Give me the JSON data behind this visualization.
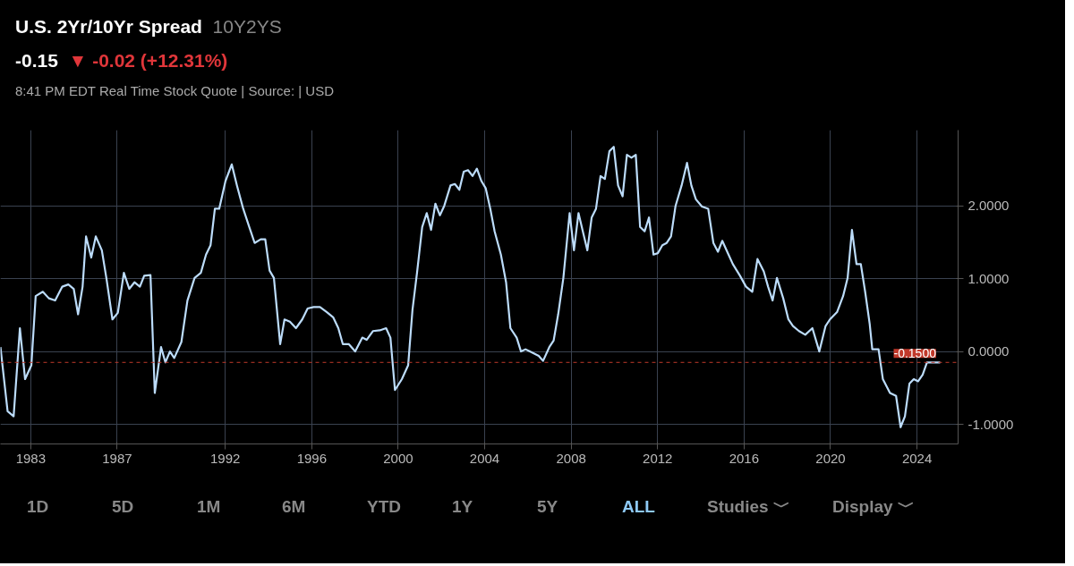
{
  "chart_data": {
    "type": "line",
    "title": "U.S. 2Yr/10Yr Spread",
    "subtitle": "10Y2YS",
    "annotations": [
      "-0.15",
      "▼ -0.02 (+12.31%)",
      "8:41 PM EDT Real Time Stock Quote | Source: | USD",
      "1D",
      "5D",
      "1M",
      "6M",
      "YTD",
      "1Y",
      "5Y",
      "ALL",
      "Studies ﹀",
      "Display ﹀"
    ],
    "x": [
      1981.6,
      1981.93,
      1982.21,
      1982.5,
      1982.74,
      1983.03,
      1983.23,
      1983.56,
      1983.84,
      1984.13,
      1984.46,
      1984.74,
      1984.99,
      1985.19,
      1985.4,
      1985.56,
      1985.8,
      1986.01,
      1986.29,
      1986.5,
      1986.78,
      1987.03,
      1987.31,
      1987.56,
      1987.8,
      1988.05,
      1988.25,
      1988.54,
      1988.74,
      1989.03,
      1989.23,
      1989.44,
      1989.64,
      1989.97,
      1990.25,
      1990.58,
      1990.87,
      1991.11,
      1991.32,
      1991.52,
      1991.72,
      1992.01,
      1992.3,
      1992.54,
      1992.83,
      1993.11,
      1993.36,
      1993.64,
      1993.85,
      1994.05,
      1994.25,
      1994.54,
      1994.74,
      1994.99,
      1995.27,
      1995.56,
      1995.81,
      1996.09,
      1996.38,
      1996.7,
      1996.99,
      1997.23,
      1997.44,
      1997.72,
      1998.01,
      1998.34,
      1998.54,
      1998.83,
      1999.15,
      1999.44,
      1999.64,
      1999.85,
      2000.17,
      2000.46,
      2000.66,
      2000.87,
      2001.11,
      2001.32,
      2001.52,
      2001.72,
      2001.93,
      2002.13,
      2002.42,
      2002.62,
      2002.83,
      2003.03,
      2003.23,
      2003.44,
      2003.64,
      2003.85,
      2004.05,
      2004.26,
      2004.46,
      2004.75,
      2004.99,
      2005.19,
      2005.48,
      2005.68,
      2005.89,
      2006.09,
      2006.5,
      2006.7,
      2006.99,
      2007.19,
      2007.4,
      2007.64,
      2007.93,
      2008.13,
      2008.34,
      2008.54,
      2008.75,
      2008.95,
      2009.15,
      2009.36,
      2009.56,
      2009.77,
      2009.97,
      2010.17,
      2010.38,
      2010.58,
      2010.79,
      2010.99,
      2011.19,
      2011.4,
      2011.6,
      2011.81,
      2012.01,
      2012.22,
      2012.42,
      2012.62,
      2012.83,
      2013.11,
      2013.36,
      2013.56,
      2013.77,
      2014.05,
      2014.34,
      2014.58,
      2014.79,
      2014.99,
      2015.28,
      2015.48,
      2015.81,
      2016.09,
      2016.38,
      2016.62,
      2016.91,
      2017.11,
      2017.32,
      2017.52,
      2017.81,
      2018.05,
      2018.26,
      2018.54,
      2018.83,
      2019.16,
      2019.48,
      2019.77,
      2019.97,
      2020.3,
      2020.58,
      2020.79,
      2020.99,
      2021.2,
      2021.4,
      2021.6,
      2021.81,
      2021.93,
      2022.22,
      2022.42,
      2022.75,
      2023.03,
      2023.24,
      2023.44,
      2023.65,
      2023.85,
      2024.05,
      2024.26,
      2024.46,
      2024.67,
      2024.87,
      2025.07
    ],
    "series": [
      {
        "color": "#bcdcfa",
        "values": [
          0.06,
          -0.82,
          -0.89,
          0.32,
          -0.38,
          -0.19,
          0.76,
          0.82,
          0.73,
          0.7,
          0.89,
          0.92,
          0.86,
          0.51,
          0.89,
          1.58,
          1.29,
          1.58,
          1.39,
          1.01,
          0.44,
          0.53,
          1.08,
          0.86,
          0.95,
          0.89,
          1.04,
          1.05,
          -0.57,
          0.06,
          -0.15,
          0.0,
          -0.09,
          0.13,
          0.7,
          1.01,
          1.08,
          1.33,
          1.46,
          1.96,
          1.96,
          2.34,
          2.57,
          2.28,
          1.96,
          1.71,
          1.49,
          1.54,
          1.54,
          1.11,
          1.01,
          0.1,
          0.44,
          0.41,
          0.32,
          0.44,
          0.59,
          0.61,
          0.61,
          0.54,
          0.47,
          0.32,
          0.1,
          0.1,
          0.0,
          0.19,
          0.16,
          0.28,
          0.29,
          0.32,
          0.19,
          -0.53,
          -0.38,
          -0.19,
          0.57,
          1.08,
          1.71,
          1.9,
          1.67,
          2.03,
          1.87,
          2.0,
          2.28,
          2.3,
          2.22,
          2.47,
          2.49,
          2.41,
          2.51,
          2.34,
          2.24,
          1.96,
          1.65,
          1.33,
          0.95,
          0.32,
          0.19,
          0.0,
          0.03,
          0.0,
          -0.06,
          -0.13,
          0.06,
          0.15,
          0.51,
          1.01,
          1.9,
          1.39,
          1.9,
          1.65,
          1.39,
          1.84,
          1.96,
          2.41,
          2.37,
          2.75,
          2.81,
          2.28,
          2.13,
          2.7,
          2.66,
          2.7,
          1.71,
          1.65,
          1.84,
          1.33,
          1.35,
          1.46,
          1.49,
          1.58,
          2.0,
          2.28,
          2.59,
          2.28,
          2.09,
          1.99,
          1.96,
          1.49,
          1.37,
          1.52,
          1.33,
          1.2,
          1.04,
          0.89,
          0.82,
          1.27,
          1.1,
          0.89,
          0.7,
          1.01,
          0.73,
          0.44,
          0.35,
          0.28,
          0.23,
          0.32,
          0.0,
          0.35,
          0.44,
          0.54,
          0.76,
          1.01,
          1.67,
          1.2,
          1.2,
          0.82,
          0.38,
          0.03,
          0.03,
          -0.38,
          -0.57,
          -0.61,
          -1.04,
          -0.89,
          -0.44,
          -0.38,
          -0.41,
          -0.32,
          -0.15,
          -0.15,
          -0.15,
          -0.15
        ]
      }
    ],
    "xlim": [
      1981.6,
      2025.9
    ],
    "ylim": [
      -1.27,
      3.04
    ],
    "xticks": [
      1983,
      1987,
      1992,
      1996,
      2000,
      2004,
      2008,
      2012,
      2016,
      2020,
      2024
    ],
    "yticks": [
      {
        "value": -1,
        "label": "-1.0000"
      },
      {
        "value": 0,
        "label": "0.0000"
      },
      {
        "value": 1,
        "label": "1.0000"
      },
      {
        "value": 2,
        "label": "2.0000"
      }
    ],
    "ref_lines": [
      {
        "axis": "y",
        "value": -0.15,
        "label": "-0.1500",
        "color": "#c0392b",
        "line_style": "dashed"
      }
    ],
    "grid": true
  }
}
